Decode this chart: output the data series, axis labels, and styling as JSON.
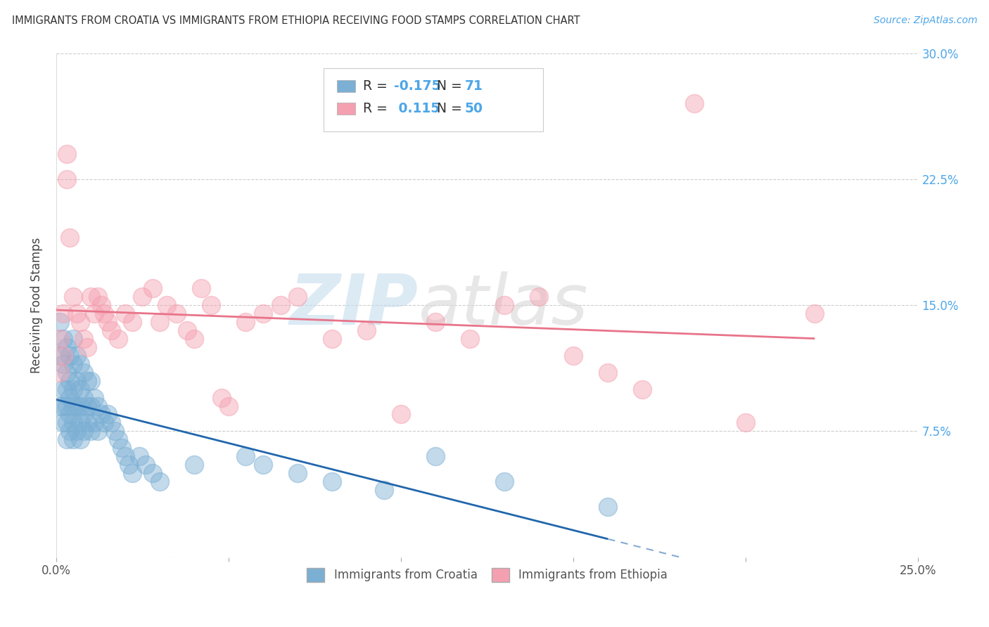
{
  "title": "IMMIGRANTS FROM CROATIA VS IMMIGRANTS FROM ETHIOPIA RECEIVING FOOD STAMPS CORRELATION CHART",
  "source": "Source: ZipAtlas.com",
  "ylabel": "Receiving Food Stamps",
  "xmin": 0.0,
  "xmax": 0.25,
  "ymin": 0.0,
  "ymax": 0.3,
  "xticks": [
    0.0,
    0.05,
    0.1,
    0.15,
    0.2,
    0.25
  ],
  "yticks": [
    0.0,
    0.075,
    0.15,
    0.225,
    0.3
  ],
  "xtick_labels": [
    "0.0%",
    "",
    "",
    "",
    "",
    "25.0%"
  ],
  "ytick_labels_right": [
    "",
    "7.5%",
    "15.0%",
    "22.5%",
    "30.0%"
  ],
  "croatia_R": -0.175,
  "croatia_N": 71,
  "ethiopia_R": 0.115,
  "ethiopia_N": 50,
  "croatia_color": "#7bafd4",
  "ethiopia_color": "#f4a0b0",
  "croatia_line_color": "#2166ac",
  "ethiopia_line_color": "#e8748a",
  "watermark_zip": "ZIP",
  "watermark_atlas": "atlas",
  "legend_label_croatia": "Immigrants from Croatia",
  "legend_label_ethiopia": "Immigrants from Ethiopia",
  "croatia_x": [
    0.001,
    0.001,
    0.001,
    0.002,
    0.002,
    0.002,
    0.002,
    0.002,
    0.003,
    0.003,
    0.003,
    0.003,
    0.003,
    0.003,
    0.004,
    0.004,
    0.004,
    0.004,
    0.004,
    0.005,
    0.005,
    0.005,
    0.005,
    0.005,
    0.005,
    0.006,
    0.006,
    0.006,
    0.006,
    0.007,
    0.007,
    0.007,
    0.007,
    0.007,
    0.008,
    0.008,
    0.008,
    0.008,
    0.009,
    0.009,
    0.009,
    0.01,
    0.01,
    0.01,
    0.011,
    0.011,
    0.012,
    0.012,
    0.013,
    0.014,
    0.015,
    0.016,
    0.017,
    0.018,
    0.019,
    0.02,
    0.021,
    0.022,
    0.024,
    0.026,
    0.028,
    0.03,
    0.04,
    0.055,
    0.06,
    0.07,
    0.08,
    0.095,
    0.11,
    0.13,
    0.16
  ],
  "croatia_y": [
    0.14,
    0.12,
    0.09,
    0.13,
    0.115,
    0.1,
    0.09,
    0.08,
    0.125,
    0.11,
    0.1,
    0.09,
    0.08,
    0.07,
    0.12,
    0.105,
    0.095,
    0.085,
    0.075,
    0.13,
    0.115,
    0.1,
    0.09,
    0.08,
    0.07,
    0.12,
    0.105,
    0.09,
    0.075,
    0.115,
    0.1,
    0.09,
    0.08,
    0.07,
    0.11,
    0.095,
    0.085,
    0.075,
    0.105,
    0.09,
    0.08,
    0.105,
    0.09,
    0.075,
    0.095,
    0.08,
    0.09,
    0.075,
    0.085,
    0.08,
    0.085,
    0.08,
    0.075,
    0.07,
    0.065,
    0.06,
    0.055,
    0.05,
    0.06,
    0.055,
    0.05,
    0.045,
    0.055,
    0.06,
    0.055,
    0.05,
    0.045,
    0.04,
    0.06,
    0.045,
    0.03
  ],
  "ethiopia_x": [
    0.001,
    0.001,
    0.002,
    0.002,
    0.003,
    0.003,
    0.004,
    0.005,
    0.006,
    0.007,
    0.008,
    0.009,
    0.01,
    0.011,
    0.012,
    0.013,
    0.014,
    0.015,
    0.016,
    0.018,
    0.02,
    0.022,
    0.025,
    0.028,
    0.03,
    0.032,
    0.035,
    0.038,
    0.04,
    0.042,
    0.045,
    0.048,
    0.05,
    0.055,
    0.06,
    0.065,
    0.07,
    0.08,
    0.09,
    0.1,
    0.11,
    0.12,
    0.13,
    0.14,
    0.15,
    0.16,
    0.17,
    0.185,
    0.2,
    0.22
  ],
  "ethiopia_y": [
    0.13,
    0.11,
    0.145,
    0.12,
    0.24,
    0.225,
    0.19,
    0.155,
    0.145,
    0.14,
    0.13,
    0.125,
    0.155,
    0.145,
    0.155,
    0.15,
    0.145,
    0.14,
    0.135,
    0.13,
    0.145,
    0.14,
    0.155,
    0.16,
    0.14,
    0.15,
    0.145,
    0.135,
    0.13,
    0.16,
    0.15,
    0.095,
    0.09,
    0.14,
    0.145,
    0.15,
    0.155,
    0.13,
    0.135,
    0.085,
    0.14,
    0.13,
    0.15,
    0.155,
    0.12,
    0.11,
    0.1,
    0.27,
    0.08,
    0.145
  ]
}
